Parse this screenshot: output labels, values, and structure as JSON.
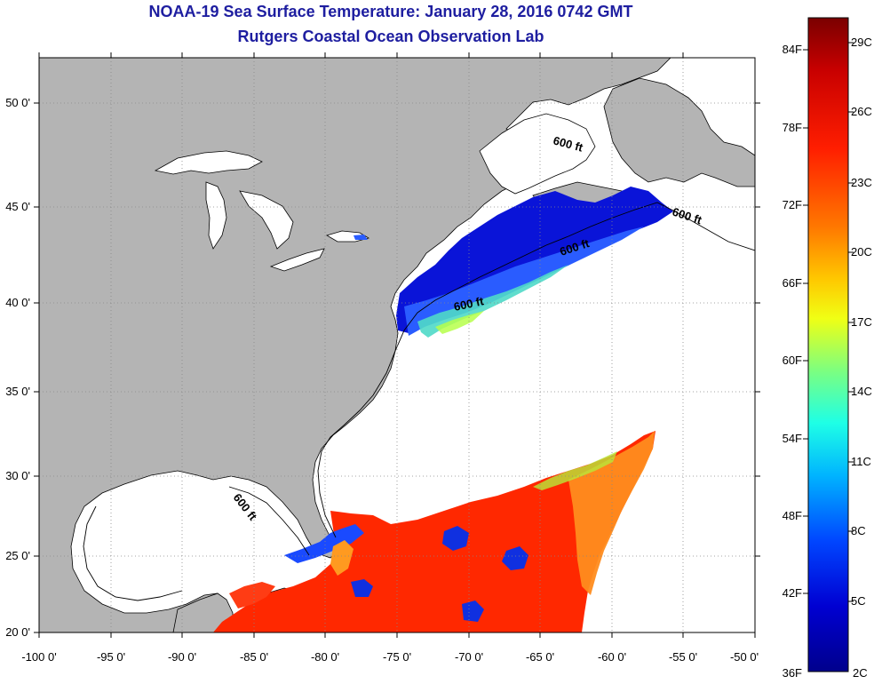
{
  "title": "NOAA-19 Sea Surface Temperature:  January 28, 2016 0742 GMT",
  "subtitle": "Rutgers Coastal Ocean Observation Lab",
  "lat_ticks": [
    "20 0'",
    "25 0'",
    "30 0'",
    "35 0'",
    "40 0'",
    "45 0'",
    "50 0'"
  ],
  "lon_ticks": [
    "-100 0'",
    "-95 0'",
    "-90 0'",
    "-85 0'",
    "-80 0'",
    "-75 0'",
    "-70 0'",
    "-65 0'",
    "-60 0'",
    "-55 0'",
    "-50 0'"
  ],
  "contour_labels": [
    "600 ft",
    "600 ft",
    "600 ft",
    "600 ft",
    "600 ft"
  ],
  "colorbar": {
    "fahrenheit": [
      "84F",
      "78F",
      "72F",
      "66F",
      "60F",
      "54F",
      "48F",
      "42F",
      "36F"
    ],
    "celsius": [
      "29C",
      "26C",
      "23C",
      "20C",
      "17C",
      "14C",
      "11C",
      "8C",
      "5C",
      "2C"
    ],
    "colors": [
      "#8b0000",
      "#d40000",
      "#ff2a00",
      "#ff7a00",
      "#ffd200",
      "#d8ff28",
      "#7bff83",
      "#22ffe0",
      "#00b4ff",
      "#0050ff",
      "#0000d8",
      "#00008b"
    ]
  },
  "colors": {
    "land": "#b4b4b4",
    "water_nodata": "#ffffff",
    "grid": "#888888",
    "title": "#1e1ea0"
  }
}
